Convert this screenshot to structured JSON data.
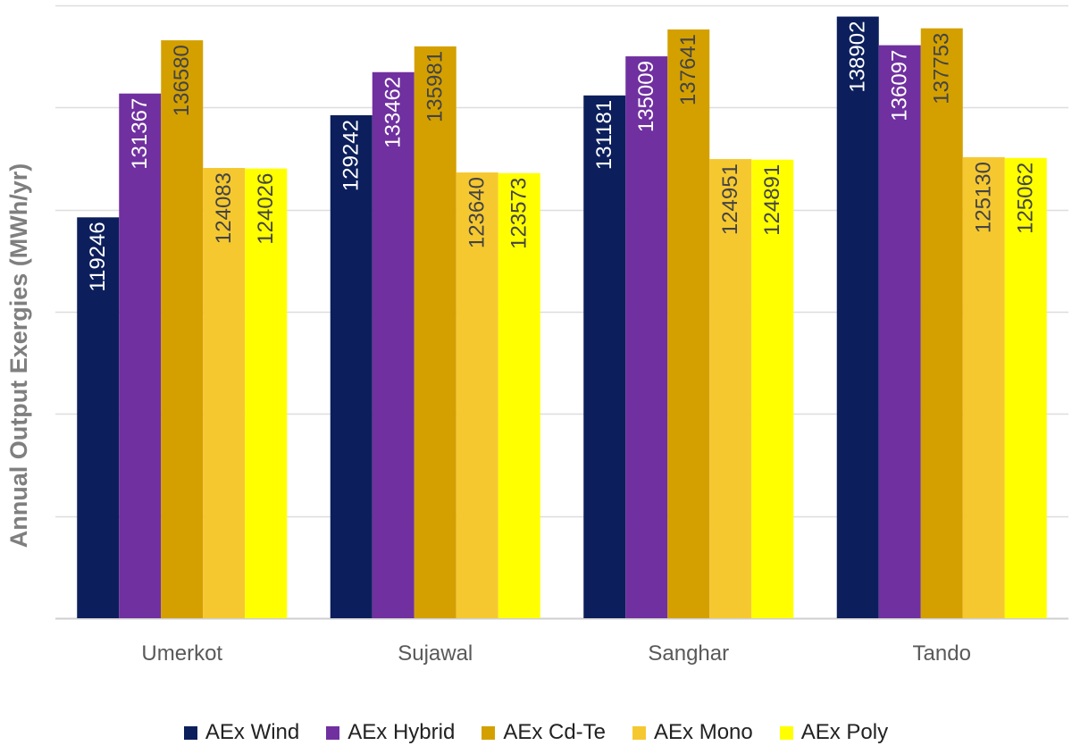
{
  "chart_data": {
    "type": "bar",
    "title": "",
    "xlabel": "",
    "ylabel": "Annual Output Exergies (MWh/yr)",
    "categories": [
      "Umerkot",
      "Sujawal",
      "Sanghar",
      "Tando"
    ],
    "ylim": [
      80000,
      140000
    ],
    "grid": true,
    "legend_position": "bottom",
    "series": [
      {
        "name": "AEx Wind",
        "color": "#0c1f5c",
        "label_color": "#ffffff",
        "values": [
          119246,
          129242,
          131181,
          138902
        ]
      },
      {
        "name": "AEx Hybrid",
        "color": "#7030a0",
        "label_color": "#ffffff",
        "values": [
          131367,
          133462,
          135009,
          136097
        ]
      },
      {
        "name": "AEx Cd-Te",
        "color": "#d4a000",
        "label_color": "#444444",
        "values": [
          136580,
          135981,
          137641,
          137753
        ]
      },
      {
        "name": "AEx Mono",
        "color": "#f6c830",
        "label_color": "#444444",
        "values": [
          124083,
          123640,
          124951,
          125130
        ]
      },
      {
        "name": "AEx Poly",
        "color": "#ffff00",
        "label_color": "#444444",
        "values": [
          124026,
          123573,
          124891,
          125062
        ]
      }
    ]
  }
}
